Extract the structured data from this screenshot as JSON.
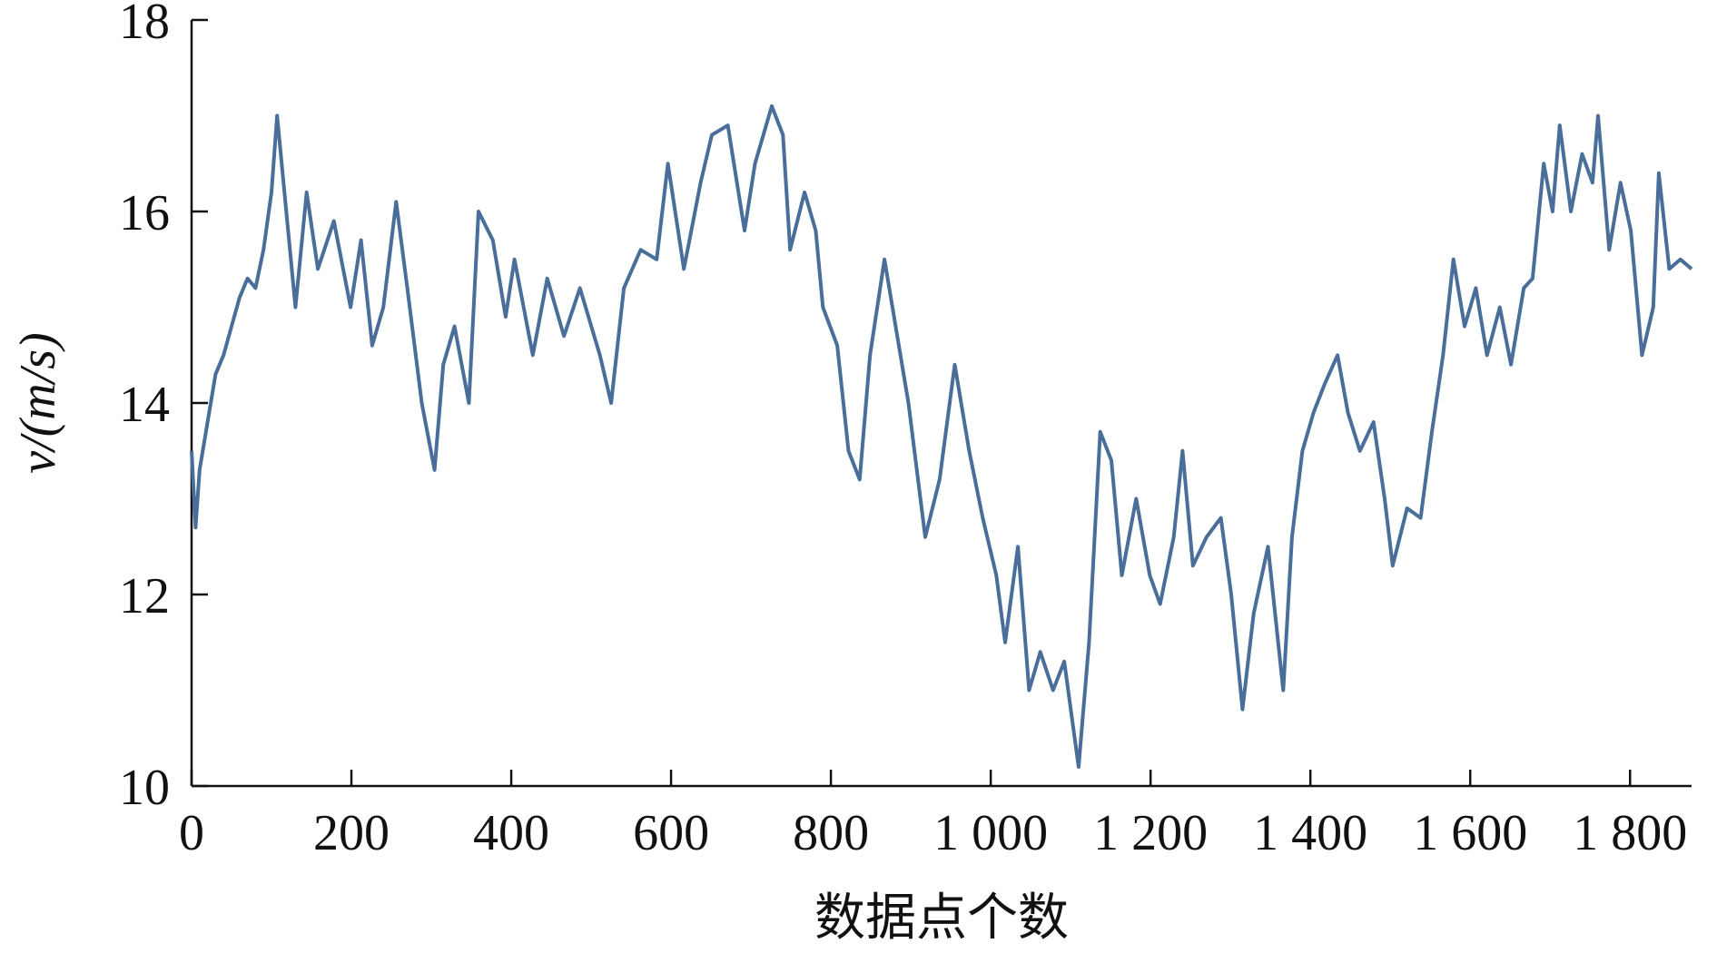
{
  "chart_data": {
    "type": "line",
    "xlabel": "数据点个数",
    "ylabel": "v/(m/s)",
    "xlim": [
      0,
      1877
    ],
    "ylim": [
      10,
      18
    ],
    "xticks": [
      0,
      200,
      400,
      600,
      800,
      {
        "value": 1000,
        "label": "1 000"
      },
      {
        "value": 1200,
        "label": "1 200"
      },
      {
        "value": 1400,
        "label": "1 400"
      },
      {
        "value": 1600,
        "label": "1 600"
      },
      {
        "value": 1800,
        "label": "1 800"
      }
    ],
    "yticks": [
      10,
      12,
      14,
      16,
      18
    ],
    "series": [
      {
        "name": "v",
        "color": "#4a6e9a",
        "x": [
          0,
          5,
          10,
          20,
          30,
          40,
          50,
          60,
          70,
          80,
          90,
          100,
          107,
          130,
          144,
          158,
          178,
          199,
          212,
          226,
          240,
          256,
          270,
          288,
          304,
          315,
          329,
          347,
          359,
          377,
          393,
          404,
          427,
          445,
          466,
          486,
          511,
          525,
          541,
          562,
          582,
          596,
          616,
          637,
          651,
          671,
          692,
          705,
          726,
          740,
          749,
          767,
          781,
          790,
          808,
          822,
          836,
          849,
          867,
          881,
          897,
          918,
          936,
          955,
          973,
          990,
          1007,
          1018,
          1034,
          1048,
          1062,
          1078,
          1092,
          1110,
          1123,
          1137,
          1151,
          1164,
          1182,
          1199,
          1212,
          1229,
          1240,
          1253,
          1270,
          1288,
          1301,
          1315,
          1329,
          1347,
          1366,
          1377,
          1390,
          1404,
          1418,
          1434,
          1447,
          1462,
          1479,
          1493,
          1503,
          1521,
          1538,
          1552,
          1566,
          1579,
          1593,
          1607,
          1621,
          1637,
          1651,
          1667,
          1678,
          1692,
          1703,
          1712,
          1726,
          1740,
          1753,
          1760,
          1774,
          1788,
          1801,
          1815,
          1829,
          1836,
          1849,
          1863,
          1877
        ],
        "values": [
          13.5,
          12.7,
          13.3,
          13.8,
          14.3,
          14.5,
          14.8,
          15.1,
          15.3,
          15.2,
          15.6,
          16.2,
          17.0,
          15.0,
          16.2,
          15.4,
          15.9,
          15.0,
          15.7,
          14.6,
          15.0,
          16.1,
          15.2,
          14.0,
          13.3,
          14.4,
          14.8,
          14.0,
          16.0,
          15.7,
          14.9,
          15.5,
          14.5,
          15.3,
          14.7,
          15.2,
          14.5,
          14.0,
          15.2,
          15.6,
          15.5,
          16.5,
          15.4,
          16.3,
          16.8,
          16.9,
          15.8,
          16.5,
          17.1,
          16.8,
          15.6,
          16.2,
          15.8,
          15.0,
          14.6,
          13.5,
          13.2,
          14.5,
          15.5,
          14.8,
          14.0,
          12.6,
          13.2,
          14.4,
          13.5,
          12.8,
          12.2,
          11.5,
          12.5,
          11.0,
          11.4,
          11.0,
          11.3,
          10.2,
          11.5,
          13.7,
          13.4,
          12.2,
          13.0,
          12.2,
          11.9,
          12.6,
          13.5,
          12.3,
          12.6,
          12.8,
          12.0,
          10.8,
          11.8,
          12.5,
          11.0,
          12.6,
          13.5,
          13.9,
          14.2,
          14.5,
          13.9,
          13.5,
          13.8,
          13.0,
          12.3,
          12.9,
          12.8,
          13.7,
          14.5,
          15.5,
          14.8,
          15.2,
          14.5,
          15.0,
          14.4,
          15.2,
          15.3,
          16.5,
          16.0,
          16.9,
          16.0,
          16.6,
          16.3,
          17.0,
          15.6,
          16.3,
          15.8,
          14.5,
          15.0,
          16.4,
          15.4,
          15.5,
          15.4
        ]
      }
    ]
  }
}
